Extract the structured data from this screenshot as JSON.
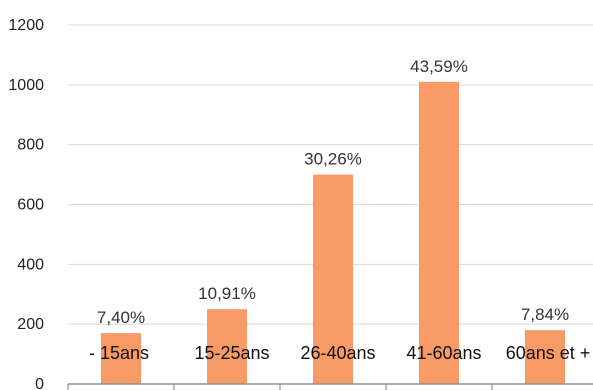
{
  "chart_data": {
    "type": "bar",
    "categories": [
      "- 15ans",
      "15-25ans",
      "26-40ans",
      "41-60ans",
      "60ans et +"
    ],
    "values": [
      170,
      250,
      700,
      1010,
      180
    ],
    "data_labels": [
      "7,40%",
      "10,91%",
      "30,26%",
      "43,59%",
      "7,84%"
    ],
    "y_ticks": [
      "0",
      "200",
      "400",
      "600",
      "800",
      "1000",
      "1200"
    ],
    "ylim": [
      0,
      1200
    ],
    "grid": true,
    "bar_color": "#F79A66",
    "grid_color": "#D9D9D9",
    "axis_color": "#8F8F8F"
  }
}
